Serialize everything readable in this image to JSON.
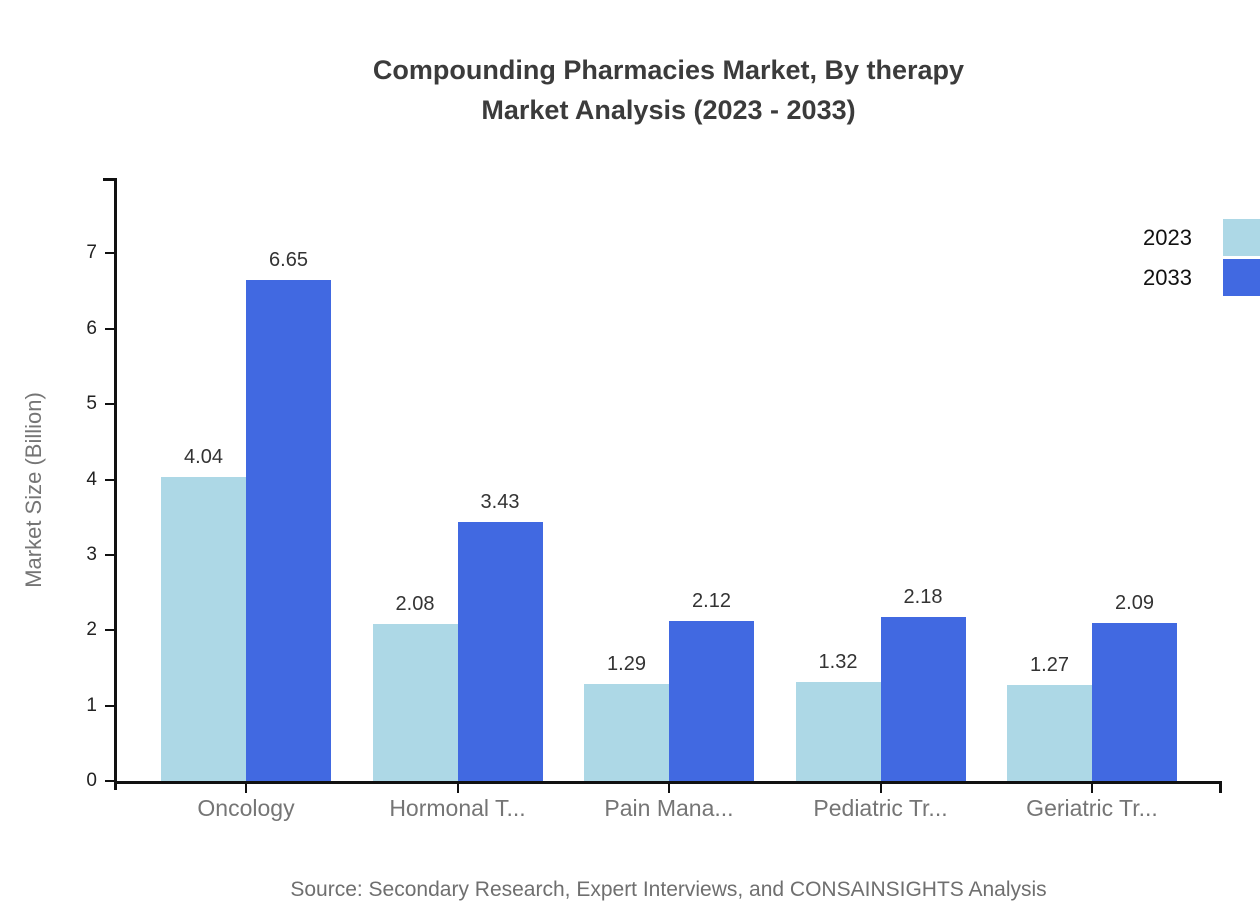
{
  "title": {
    "line1": "Compounding Pharmacies Market, By therapy",
    "line2": "Market Analysis (2023 - 2033)"
  },
  "source": "Source: Secondary Research, Expert Interviews, and CONSAINSIGHTS Analysis",
  "chart_data": {
    "type": "bar",
    "title": "Compounding Pharmacies Market, By therapy Market Analysis (2023 - 2033)",
    "categories": [
      "Oncology",
      "Hormonal T...",
      "Pain Mana...",
      "Pediatric Tr...",
      "Geriatric Tr..."
    ],
    "series": [
      {
        "name": "2023",
        "color": "#ADD8E6",
        "values": [
          4.04,
          2.08,
          1.29,
          1.32,
          1.27
        ]
      },
      {
        "name": "2033",
        "color": "#4169E1",
        "values": [
          6.65,
          3.43,
          2.12,
          2.18,
          2.09
        ]
      }
    ],
    "xlabel": "",
    "ylabel": "Market Size (Billion)",
    "ylim": [
      0,
      8
    ],
    "yticks": [
      0,
      1,
      2,
      3,
      4,
      5,
      6,
      7
    ],
    "grid": false,
    "legend_position": "top-right",
    "value_labels": true,
    "background": "#ffffff"
  }
}
